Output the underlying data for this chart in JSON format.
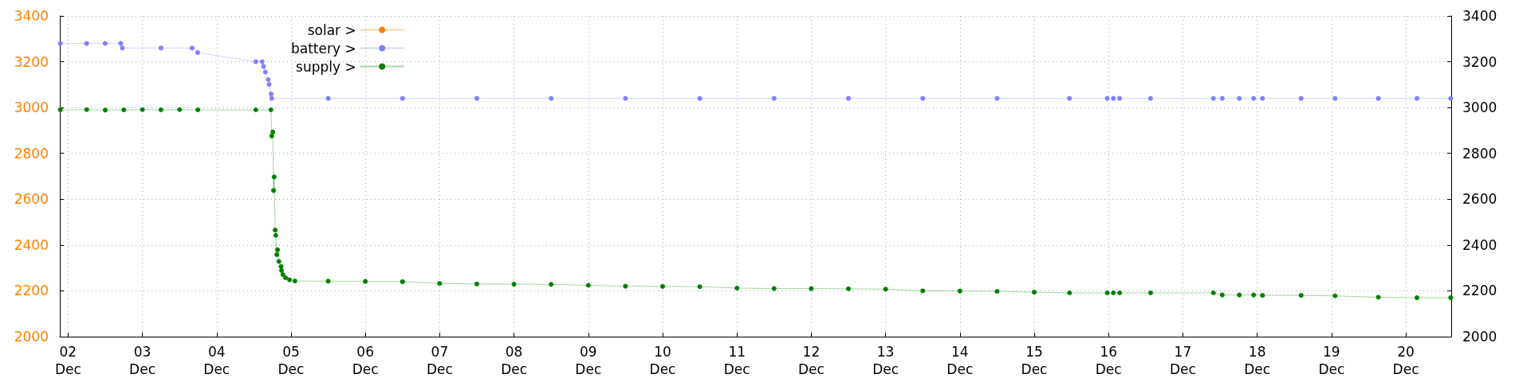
{
  "chart_data": {
    "type": "line",
    "marker": "circle",
    "line_style": "solid",
    "grid": true,
    "legend": "top left",
    "xlim": [
      "--12-01T21:20",
      "--12-20T14:40"
    ],
    "xticks": [
      {
        "value": "--12-02",
        "label": "02\nDec"
      },
      {
        "value": "--12-03",
        "label": "03\nDec"
      },
      {
        "value": "--12-04",
        "label": "04\nDec"
      },
      {
        "value": "--12-05",
        "label": "05\nDec"
      },
      {
        "value": "--12-06",
        "label": "06\nDec"
      },
      {
        "value": "--12-07",
        "label": "07\nDec"
      },
      {
        "value": "--12-08",
        "label": "08\nDec"
      },
      {
        "value": "--12-09",
        "label": "09\nDec"
      },
      {
        "value": "--12-10",
        "label": "10\nDec"
      },
      {
        "value": "--12-11",
        "label": "11\nDec"
      },
      {
        "value": "--12-12",
        "label": "12\nDec"
      },
      {
        "value": "--12-13",
        "label": "13\nDec"
      },
      {
        "value": "--12-14",
        "label": "14\nDec"
      },
      {
        "value": "--12-15",
        "label": "15\nDec"
      },
      {
        "value": "--12-16",
        "label": "16\nDec"
      },
      {
        "value": "--12-17",
        "label": "17\nDec"
      },
      {
        "value": "--12-18",
        "label": "18\nDec"
      },
      {
        "value": "--12-19",
        "label": "19\nDec"
      },
      {
        "value": "--12-20",
        "label": "20\nDec"
      }
    ],
    "ylim": [
      2000,
      3400
    ],
    "yticks": [
      2000,
      2200,
      2400,
      2600,
      2800,
      3000,
      3200,
      3400
    ],
    "y2lim": [
      2000,
      3400
    ],
    "y2ticks": [
      2000,
      2200,
      2400,
      2600,
      2800,
      3000,
      3200,
      3400
    ],
    "series": [
      {
        "name": "solar >",
        "color": "#ff8000"
      },
      {
        "name": "battery >",
        "color": "#8080ff",
        "x": [
          "--12-01T21:30",
          "--12-02T06:00",
          "--12-02T12:00",
          "--12-02T17:00",
          "--12-02T17:30",
          "--12-03T06:00",
          "--12-03T16:03",
          "--12-03T17:51",
          "--12-04T12:38",
          "--12-04T14:41",
          "--12-04T15:07",
          "--12-04T15:43",
          "--12-04T16:39",
          "--12-04T16:55",
          "--12-04T17:35",
          "--12-04T17:45",
          "--12-05T12:00",
          "--12-06T12:00",
          "--12-07T12:00",
          "--12-08T12:00",
          "--12-09T12:00",
          "--12-10T12:00",
          "--12-11T12:00",
          "--12-12T12:00",
          "--12-13T12:00",
          "--12-14T12:00",
          "--12-15T11:23",
          "--12-15T23:35",
          "--12-16T01:34",
          "--12-16T03:34",
          "--12-16T13:34",
          "--12-17T09:52",
          "--12-17T12:43",
          "--12-17T18:13",
          "--12-17T22:51",
          "--12-18T01:42",
          "--12-18T14:11",
          "--12-19T01:09",
          "--12-19T15:07",
          "--12-20T03:35",
          "--12-20T14:30"
        ],
        "values": [
          3280,
          3280,
          3280,
          3280,
          3260,
          3260,
          3260,
          3240,
          3200,
          3200,
          3180,
          3155,
          3122,
          3101,
          3059,
          3040,
          3040,
          3040,
          3040,
          3040,
          3040,
          3040,
          3040,
          3040,
          3040,
          3040,
          3040,
          3040,
          3040,
          3040,
          3040,
          3040,
          3040,
          3040,
          3040,
          3040,
          3040,
          3040,
          3040,
          3040,
          3040
        ]
      },
      {
        "name": "supply >",
        "color": "#008000",
        "x": [
          "--12-01T21:30",
          "--12-02T06:00",
          "--12-02T12:00",
          "--12-02T18:00",
          "--12-03T00:00",
          "--12-03T06:00",
          "--12-03T12:00",
          "--12-03T17:55",
          "--12-04T12:38",
          "--12-04T17:31",
          "--12-04T17:47",
          "--12-04T18:07",
          "--12-04T18:22",
          "--12-04T18:33",
          "--12-04T18:53",
          "--12-04T19:04",
          "--12-04T19:24",
          "--12-04T19:39",
          "--12-04T20:05",
          "--12-04T20:47",
          "--12-04T20:56",
          "--12-04T21:23",
          "--12-04T22:13",
          "--12-04T23:31",
          "--12-05T01:14",
          "--12-05T12:00",
          "--12-06T00:00",
          "--12-06T12:00",
          "--12-07T00:00",
          "--12-07T12:00",
          "--12-08T00:00",
          "--12-08T12:00",
          "--12-09T00:00",
          "--12-09T12:00",
          "--12-10T00:00",
          "--12-10T12:00",
          "--12-11T00:00",
          "--12-11T12:00",
          "--12-12T00:00",
          "--12-12T12:00",
          "--12-13T00:00",
          "--12-13T12:00",
          "--12-14T00:00",
          "--12-14T12:00",
          "--12-15T00:00",
          "--12-15T11:23",
          "--12-15T23:35",
          "--12-16T01:34",
          "--12-16T03:34",
          "--12-16T13:34",
          "--12-17T09:52",
          "--12-17T12:43",
          "--12-17T18:13",
          "--12-17T22:51",
          "--12-18T01:42",
          "--12-18T14:11",
          "--12-19T01:09",
          "--12-19T15:07",
          "--12-20T03:35",
          "--12-20T14:30"
        ],
        "values": [
          2990,
          2991,
          2989,
          2990,
          2991,
          2990,
          2991,
          2990,
          2990,
          2990,
          2876,
          2893,
          2638,
          2697,
          2465,
          2442,
          2358,
          2379,
          2328,
          2306,
          2289,
          2271,
          2257,
          2248,
          2243,
          2242,
          2241,
          2240,
          2232,
          2230,
          2229,
          2228,
          2224,
          2220,
          2219,
          2218,
          2212,
          2210,
          2210,
          2209,
          2207,
          2200,
          2199,
          2198,
          2194,
          2191,
          2191,
          2191,
          2191,
          2191,
          2191,
          2182,
          2182,
          2182,
          2180,
          2180,
          2178,
          2172,
          2170,
          2170
        ]
      }
    ]
  }
}
